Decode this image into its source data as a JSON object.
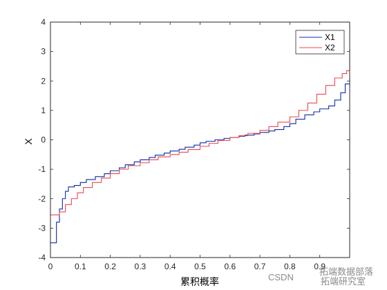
{
  "chart_data": {
    "type": "line",
    "xlabel": "累积概率",
    "ylabel": "X",
    "xlim": [
      0,
      1
    ],
    "ylim": [
      -4,
      4
    ],
    "x_ticks": [
      "0",
      "0.1",
      "0.2",
      "0.3",
      "0.4",
      "0.5",
      "0.6",
      "0.7",
      "0.8",
      "0.9"
    ],
    "y_ticks": [
      "-4",
      "-3",
      "-2",
      "-1",
      "0",
      "1",
      "2",
      "3",
      "4"
    ],
    "grid": false,
    "legend_position": "top-right",
    "series": [
      {
        "name": "X1",
        "color": "#0b2aa8",
        "step": true,
        "x": [
          0.0,
          0.02,
          0.03,
          0.04,
          0.05,
          0.06,
          0.08,
          0.1,
          0.12,
          0.15,
          0.18,
          0.2,
          0.23,
          0.25,
          0.28,
          0.3,
          0.33,
          0.35,
          0.38,
          0.4,
          0.43,
          0.45,
          0.48,
          0.5,
          0.52,
          0.55,
          0.58,
          0.6,
          0.63,
          0.65,
          0.68,
          0.7,
          0.73,
          0.75,
          0.78,
          0.8,
          0.82,
          0.85,
          0.88,
          0.9,
          0.93,
          0.95,
          0.97,
          0.985,
          1.0
        ],
        "y": [
          -3.5,
          -2.8,
          -2.35,
          -2.0,
          -1.75,
          -1.6,
          -1.55,
          -1.45,
          -1.35,
          -1.25,
          -1.15,
          -1.05,
          -0.95,
          -0.85,
          -0.75,
          -0.68,
          -0.6,
          -0.52,
          -0.45,
          -0.38,
          -0.32,
          -0.25,
          -0.18,
          -0.1,
          -0.05,
          0.0,
          0.05,
          0.08,
          0.12,
          0.16,
          0.2,
          0.25,
          0.3,
          0.35,
          0.45,
          0.55,
          0.7,
          0.85,
          0.95,
          1.05,
          1.15,
          1.35,
          1.6,
          1.9,
          2.1
        ]
      },
      {
        "name": "X2",
        "color": "#e8474f",
        "step": true,
        "x": [
          0.0,
          0.03,
          0.05,
          0.07,
          0.09,
          0.11,
          0.14,
          0.17,
          0.2,
          0.23,
          0.26,
          0.3,
          0.33,
          0.36,
          0.4,
          0.43,
          0.46,
          0.5,
          0.53,
          0.56,
          0.6,
          0.63,
          0.66,
          0.7,
          0.73,
          0.76,
          0.8,
          0.83,
          0.86,
          0.89,
          0.92,
          0.95,
          0.975,
          0.99,
          1.0
        ],
        "y": [
          -2.55,
          -2.45,
          -2.2,
          -2.0,
          -1.8,
          -1.62,
          -1.45,
          -1.3,
          -1.15,
          -1.0,
          -0.88,
          -0.78,
          -0.68,
          -0.58,
          -0.5,
          -0.42,
          -0.33,
          -0.22,
          -0.12,
          -0.02,
          0.08,
          0.14,
          0.22,
          0.32,
          0.45,
          0.6,
          0.78,
          1.0,
          1.25,
          1.55,
          1.85,
          2.1,
          2.25,
          2.35,
          3.1
        ]
      }
    ]
  },
  "watermark": {
    "csdn": "CSDN",
    "brand_a": "拓端数据部落",
    "brand_b": "拓端研究室"
  }
}
